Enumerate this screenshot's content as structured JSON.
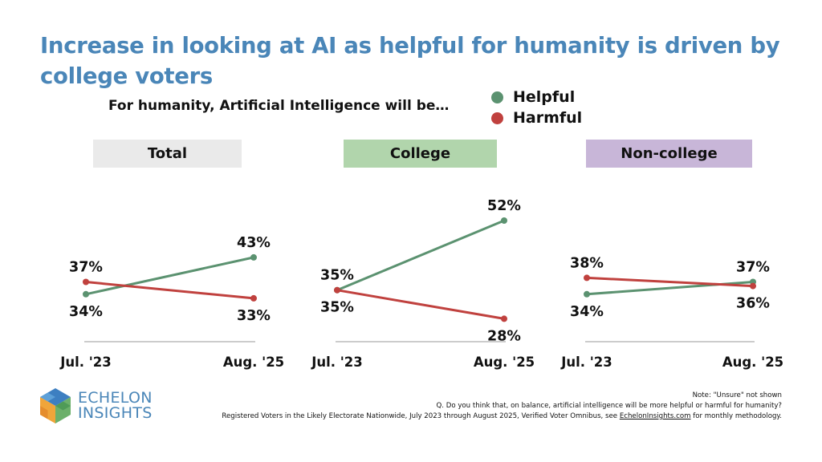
{
  "title": "Increase in looking at AI as helpful for humanity is driven by college voters",
  "subtitle": "For humanity, Artificial Intelligence will be…",
  "colors": {
    "helpful": "#5b9270",
    "harmful": "#c0413e",
    "title": "#4a86b8"
  },
  "legend": [
    {
      "label": "Helpful",
      "color": "#5b9270"
    },
    {
      "label": "Harmful",
      "color": "#c0413e"
    }
  ],
  "chart_data": [
    {
      "type": "line",
      "title": "Total",
      "header_color": "#eaeaea",
      "categories": [
        "Jul. '23",
        "Aug. '25"
      ],
      "series": [
        {
          "name": "Helpful",
          "values": [
            34,
            43
          ],
          "labels": [
            "34%",
            "43%"
          ]
        },
        {
          "name": "Harmful",
          "values": [
            37,
            33
          ],
          "labels": [
            "37%",
            "33%"
          ]
        }
      ]
    },
    {
      "type": "line",
      "title": "College",
      "header_color": "#b1d5ac",
      "categories": [
        "Jul. '23",
        "Aug. '25"
      ],
      "series": [
        {
          "name": "Helpful",
          "values": [
            35,
            52
          ],
          "labels": [
            "35%",
            "52%"
          ]
        },
        {
          "name": "Harmful",
          "values": [
            35,
            28
          ],
          "labels": [
            "35%",
            "28%"
          ]
        }
      ]
    },
    {
      "type": "line",
      "title": "Non-college",
      "header_color": "#c8b6d8",
      "categories": [
        "Jul. '23",
        "Aug. '25"
      ],
      "series": [
        {
          "name": "Helpful",
          "values": [
            34,
            37
          ],
          "labels": [
            "34%",
            "37%"
          ]
        },
        {
          "name": "Harmful",
          "values": [
            38,
            36
          ],
          "labels": [
            "38%",
            "36%"
          ]
        }
      ]
    }
  ],
  "footer": {
    "note": "Note: \"Unsure\" not shown",
    "question": "Q. Do you think that, on balance, artificial intelligence will be more helpful or harmful for humanity?",
    "source_prefix": "Registered Voters in the Likely Electorate Nationwide, July 2023 through August 2025, Verified Voter Omnibus, see ",
    "source_link": "EchelonInsights.com",
    "source_suffix": " for monthly methodology."
  },
  "logo": {
    "line1": "ECHELON",
    "line2": "INSIGHTS"
  }
}
